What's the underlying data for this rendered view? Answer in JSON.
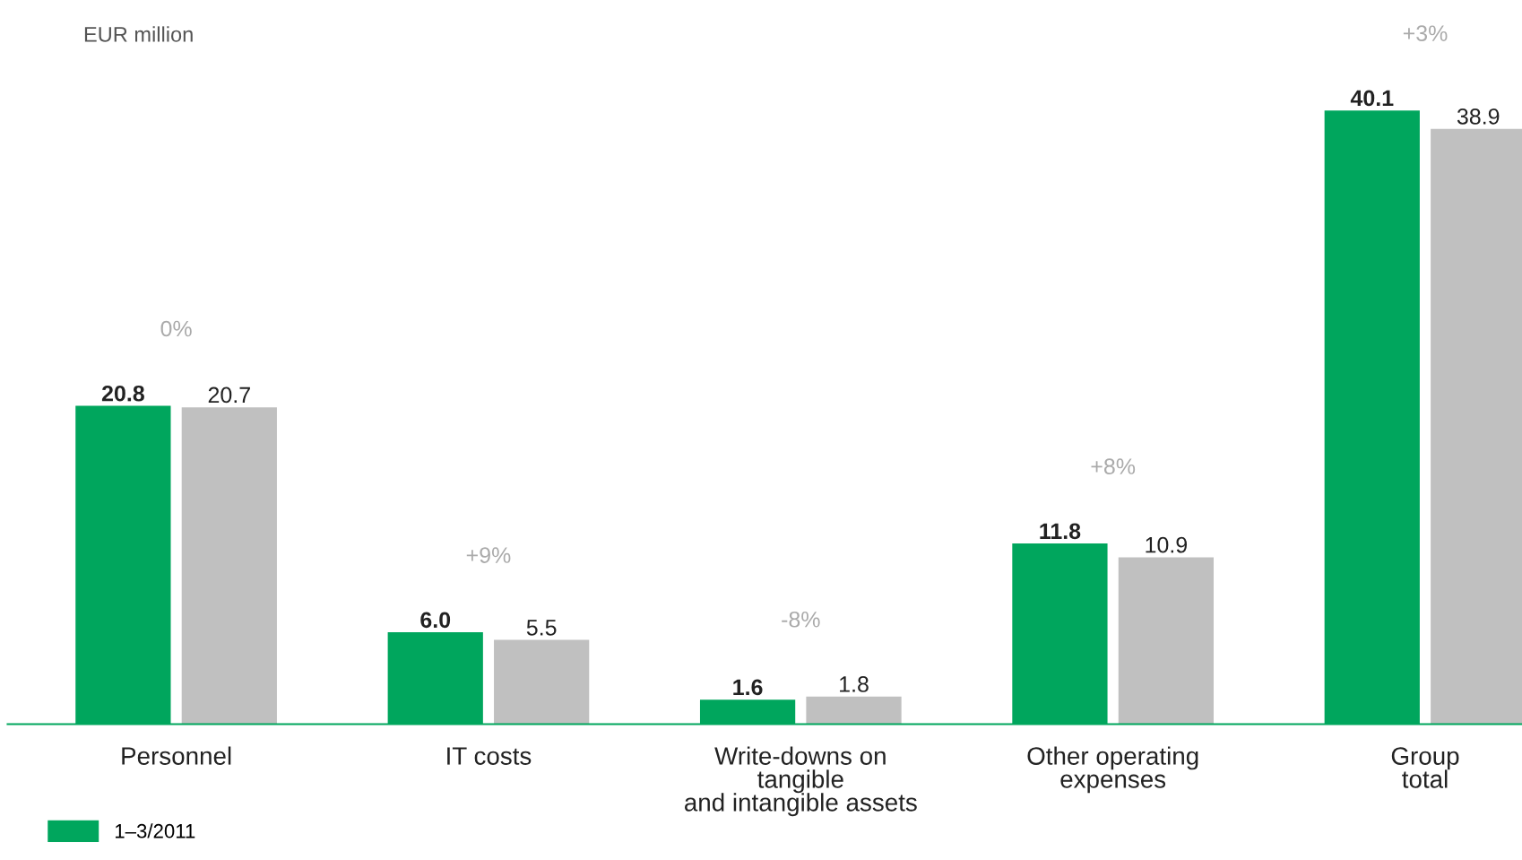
{
  "chart_data": {
    "type": "bar",
    "ylabel": "EUR million",
    "categories": [
      "Personnel",
      "IT costs",
      "Write-downs on\ntangible\nand intangible assets",
      "Other operating\nexpenses",
      "Group\ntotal"
    ],
    "series": [
      {
        "name": "1–3/2011",
        "color": "#00a65d",
        "values": [
          20.8,
          6.0,
          1.6,
          11.8,
          40.1
        ],
        "value_labels": [
          "20.8",
          "6.0",
          "1.6",
          "11.8",
          "40.1"
        ]
      },
      {
        "color": "#c0c0c0",
        "values": [
          20.7,
          5.5,
          1.8,
          10.9,
          38.9
        ],
        "value_labels": [
          "20.7",
          "5.5",
          "1.8",
          "10.9",
          "38.9"
        ]
      }
    ],
    "legend": "bottom left",
    "grid": false,
    "annotations": [
      "0%",
      "+9%",
      "-8%",
      "+8%",
      "+3%"
    ]
  }
}
